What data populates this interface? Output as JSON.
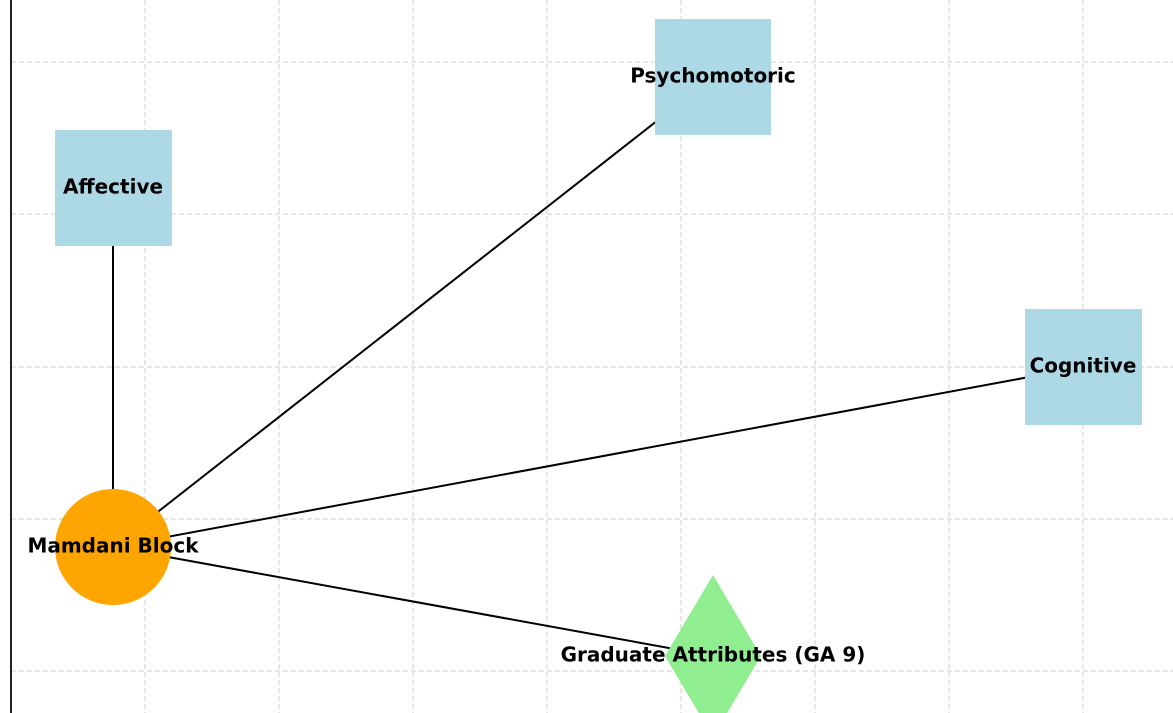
{
  "nodes": [
    {
      "label": "Mamdani Block"
    },
    {
      "label": "Affective"
    },
    {
      "label": "Psychomotoric"
    },
    {
      "label": "Cognitive"
    },
    {
      "label": "Graduate Attributes (GA 9)"
    }
  ]
}
